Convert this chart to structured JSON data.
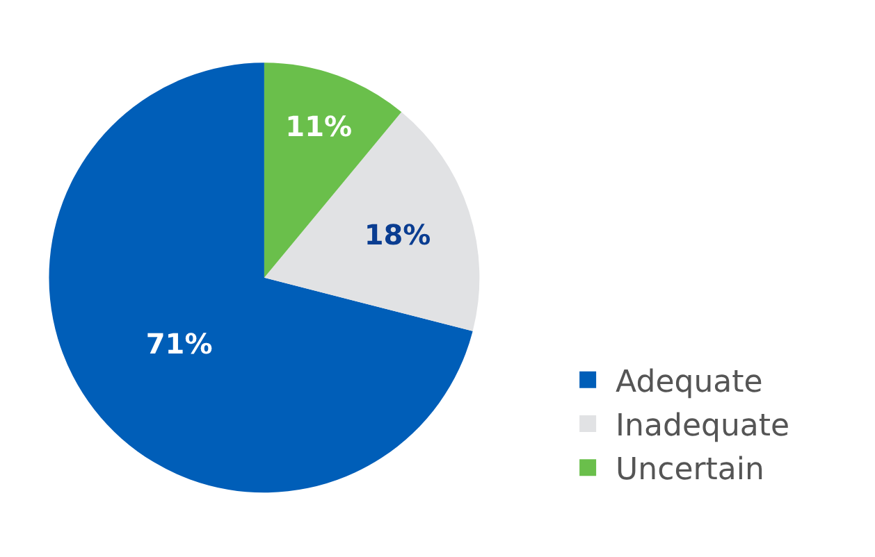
{
  "chart_data": {
    "type": "pie",
    "categories": [
      "Adequate",
      "Inadequate",
      "Uncertain"
    ],
    "values": [
      71,
      18,
      11
    ],
    "colors": [
      "#005eb8",
      "#e1e2e4",
      "#6abf4b"
    ],
    "value_labels": [
      "71%",
      "18%",
      "11%"
    ],
    "legend": "right"
  }
}
